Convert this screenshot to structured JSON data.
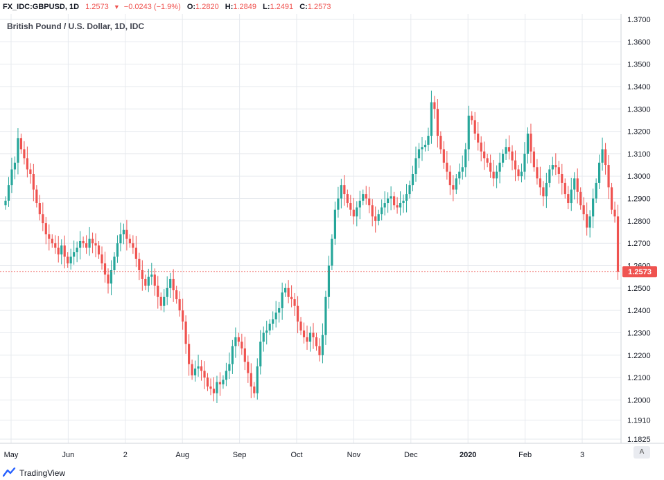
{
  "header": {
    "symbol": "FX_IDC:GBPUSD, 1D",
    "last": "1.2573",
    "change": "−0.0243 (−1.9%)",
    "open_label": "O:",
    "open": "1.2820",
    "high_label": "H:",
    "high": "1.2849",
    "low_label": "L:",
    "low": "1.2491",
    "close_label": "C:",
    "close": "1.2573"
  },
  "chart_title": "British Pound / U.S. Dollar, 1D, IDC",
  "footer": {
    "brand": "TradingView",
    "auto_label": "A"
  },
  "colors": {
    "up": "#26a69a",
    "down": "#ef5350",
    "grid": "#e6e9ee",
    "price_line": "#ef5350"
  },
  "chart_data": {
    "type": "candlestick",
    "title": "British Pound / U.S. Dollar, 1D, IDC",
    "ylim": [
      1.1825,
      1.37
    ],
    "y_ticks": [
      "1.3700",
      "1.3600",
      "1.3500",
      "1.3400",
      "1.3300",
      "1.3200",
      "1.3100",
      "1.3000",
      "1.2900",
      "1.2800",
      "1.2700",
      "1.2600",
      "1.2500",
      "1.2400",
      "1.2300",
      "1.2200",
      "1.2100",
      "1.2000",
      "1.1910",
      "1.1825"
    ],
    "x_labels": [
      "May",
      "Jun",
      "2",
      "Aug",
      "Sep",
      "Oct",
      "Nov",
      "Dec",
      "2020",
      "Feb",
      "3"
    ],
    "current_price": 1.2573,
    "current_price_label": "1.2573",
    "closes": [
      1.289,
      1.296,
      1.303,
      1.306,
      1.317,
      1.312,
      1.308,
      1.303,
      1.301,
      1.294,
      1.288,
      1.283,
      1.279,
      1.274,
      1.272,
      1.27,
      1.268,
      1.265,
      1.269,
      1.264,
      1.261,
      1.264,
      1.266,
      1.268,
      1.271,
      1.27,
      1.268,
      1.272,
      1.27,
      1.269,
      1.265,
      1.261,
      1.256,
      1.252,
      1.258,
      1.264,
      1.27,
      1.274,
      1.276,
      1.272,
      1.27,
      1.268,
      1.263,
      1.258,
      1.254,
      1.251,
      1.255,
      1.256,
      1.251,
      1.246,
      1.242,
      1.246,
      1.25,
      1.254,
      1.249,
      1.245,
      1.24,
      1.235,
      1.225,
      1.216,
      1.211,
      1.214,
      1.215,
      1.213,
      1.21,
      1.206,
      1.205,
      1.203,
      1.208,
      1.207,
      1.209,
      1.213,
      1.216,
      1.224,
      1.228,
      1.226,
      1.223,
      1.217,
      1.212,
      1.206,
      1.203,
      1.215,
      1.226,
      1.23,
      1.231,
      1.234,
      1.236,
      1.239,
      1.241,
      1.248,
      1.25,
      1.246,
      1.245,
      1.242,
      1.235,
      1.231,
      1.228,
      1.226,
      1.23,
      1.228,
      1.224,
      1.22,
      1.229,
      1.246,
      1.26,
      1.272,
      1.285,
      1.29,
      1.296,
      1.292,
      1.288,
      1.285,
      1.282,
      1.286,
      1.289,
      1.292,
      1.29,
      1.287,
      1.282,
      1.28,
      1.283,
      1.286,
      1.288,
      1.29,
      1.291,
      1.287,
      1.286,
      1.288,
      1.289,
      1.292,
      1.296,
      1.301,
      1.308,
      1.312,
      1.313,
      1.314,
      1.318,
      1.333,
      1.33,
      1.318,
      1.312,
      1.306,
      1.302,
      1.296,
      1.294,
      1.299,
      1.302,
      1.304,
      1.312,
      1.327,
      1.325,
      1.319,
      1.315,
      1.311,
      1.308,
      1.306,
      1.302,
      1.299,
      1.302,
      1.306,
      1.31,
      1.313,
      1.311,
      1.307,
      1.303,
      1.3,
      1.302,
      1.31,
      1.319,
      1.311,
      1.304,
      1.299,
      1.295,
      1.291,
      1.297,
      1.303,
      1.305,
      1.304,
      1.301,
      1.297,
      1.292,
      1.288,
      1.294,
      1.299,
      1.293,
      1.287,
      1.283,
      1.277,
      1.282,
      1.29,
      1.297,
      1.306,
      1.312,
      1.305,
      1.295,
      1.285,
      1.282,
      1.2573
    ]
  }
}
